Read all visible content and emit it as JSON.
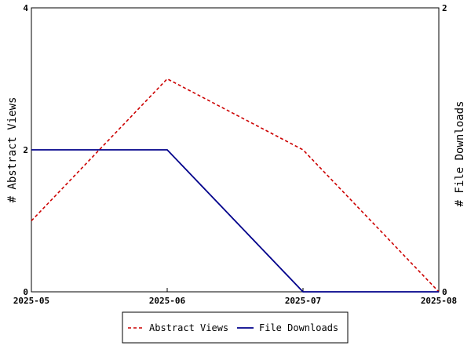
{
  "chart_data": {
    "type": "line",
    "x": [
      "2025-05",
      "2025-06",
      "2025-07",
      "2025-08"
    ],
    "x_tick_labels": [
      "2025-05",
      "2025-06",
      "2025-07",
      "2025-08"
    ],
    "series": [
      {
        "name": "Abstract Views",
        "axis": "left",
        "values": [
          1,
          3,
          2,
          0
        ],
        "color": "#cc0000",
        "dash": "dashed"
      },
      {
        "name": "File Downloads",
        "axis": "right",
        "values": [
          1,
          1,
          0,
          0
        ],
        "color": "#00008b",
        "dash": "solid"
      }
    ],
    "ylabel_left": "# Abstract Views",
    "ylabel_right": "# File Downloads",
    "ylim_left": [
      0,
      4
    ],
    "ylim_right": [
      0,
      2
    ],
    "yticks_left": [
      "0",
      "2",
      "4"
    ],
    "yticks_right": [
      "0",
      "2"
    ],
    "grid": false,
    "legend_position": "bottom-center"
  }
}
